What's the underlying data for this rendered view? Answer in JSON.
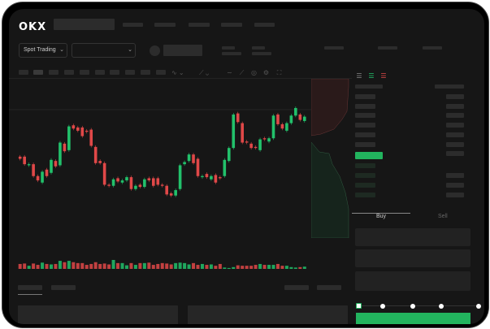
{
  "header": {
    "logo": "OKX"
  },
  "toolbar": {
    "market_select": "Spot Trading"
  },
  "trade_panel": {
    "tabs": [
      {
        "label": "Buy",
        "active": true
      },
      {
        "label": "Sell",
        "active": false
      }
    ],
    "slider_percent": 0
  },
  "colors": {
    "up": "#22c16b",
    "down": "#e04848",
    "background": "#161616",
    "accent": "#22b45e"
  },
  "chart_data": {
    "type": "candlestick",
    "candles": [
      [
        46,
        44
      ],
      [
        46,
        39
      ],
      [
        38,
        39
      ],
      [
        39,
        28
      ],
      [
        28,
        24
      ],
      [
        22,
        32
      ],
      [
        34,
        28
      ],
      [
        31,
        43
      ],
      [
        42,
        37
      ],
      [
        38,
        59
      ],
      [
        58,
        51
      ],
      [
        52,
        74
      ],
      [
        75,
        72
      ],
      [
        73,
        70
      ],
      [
        73,
        65
      ],
      [
        70,
        69
      ],
      [
        71,
        56
      ],
      [
        55,
        40
      ],
      [
        42,
        40
      ],
      [
        40,
        20
      ],
      [
        20,
        19
      ],
      [
        19,
        25
      ],
      [
        26,
        23
      ],
      [
        22,
        24
      ],
      [
        24,
        27
      ],
      [
        27,
        16
      ],
      [
        16,
        19
      ],
      [
        20,
        18
      ],
      [
        18,
        25
      ],
      [
        26,
        24
      ],
      [
        26,
        19
      ],
      [
        26,
        20
      ],
      [
        20,
        19
      ],
      [
        19,
        11
      ],
      [
        12,
        10
      ],
      [
        10,
        15
      ],
      [
        16,
        38
      ],
      [
        39,
        41
      ],
      [
        42,
        48
      ],
      [
        48,
        40
      ],
      [
        44,
        28
      ],
      [
        27,
        28
      ],
      [
        30,
        27
      ],
      [
        25,
        28
      ],
      [
        29,
        22
      ],
      [
        27,
        26
      ],
      [
        28,
        43
      ],
      [
        42,
        54
      ],
      [
        54,
        85
      ],
      [
        86,
        78
      ],
      [
        77,
        59
      ],
      [
        60,
        59
      ],
      [
        58,
        54
      ],
      [
        55,
        54
      ],
      [
        52,
        62
      ],
      [
        63,
        62
      ],
      [
        60,
        63
      ],
      [
        63,
        84
      ],
      [
        85,
        76
      ],
      [
        76,
        72
      ],
      [
        70,
        77
      ],
      [
        77,
        84
      ],
      [
        84,
        91
      ],
      [
        85,
        80
      ],
      [
        79,
        83
      ]
    ],
    "volumes": [
      11,
      12,
      7,
      12,
      9,
      14,
      11,
      10,
      11,
      18,
      15,
      18,
      15,
      13,
      13,
      9,
      11,
      15,
      11,
      12,
      10,
      20,
      13,
      13,
      8,
      13,
      9,
      13,
      13,
      14,
      9,
      11,
      13,
      12,
      10,
      13,
      14,
      13,
      10,
      13,
      9,
      11,
      9,
      10,
      7,
      11,
      3,
      2,
      4,
      8,
      7,
      7,
      7,
      9,
      11,
      9,
      9,
      9,
      11,
      7,
      7,
      4,
      3,
      4,
      5
    ]
  }
}
